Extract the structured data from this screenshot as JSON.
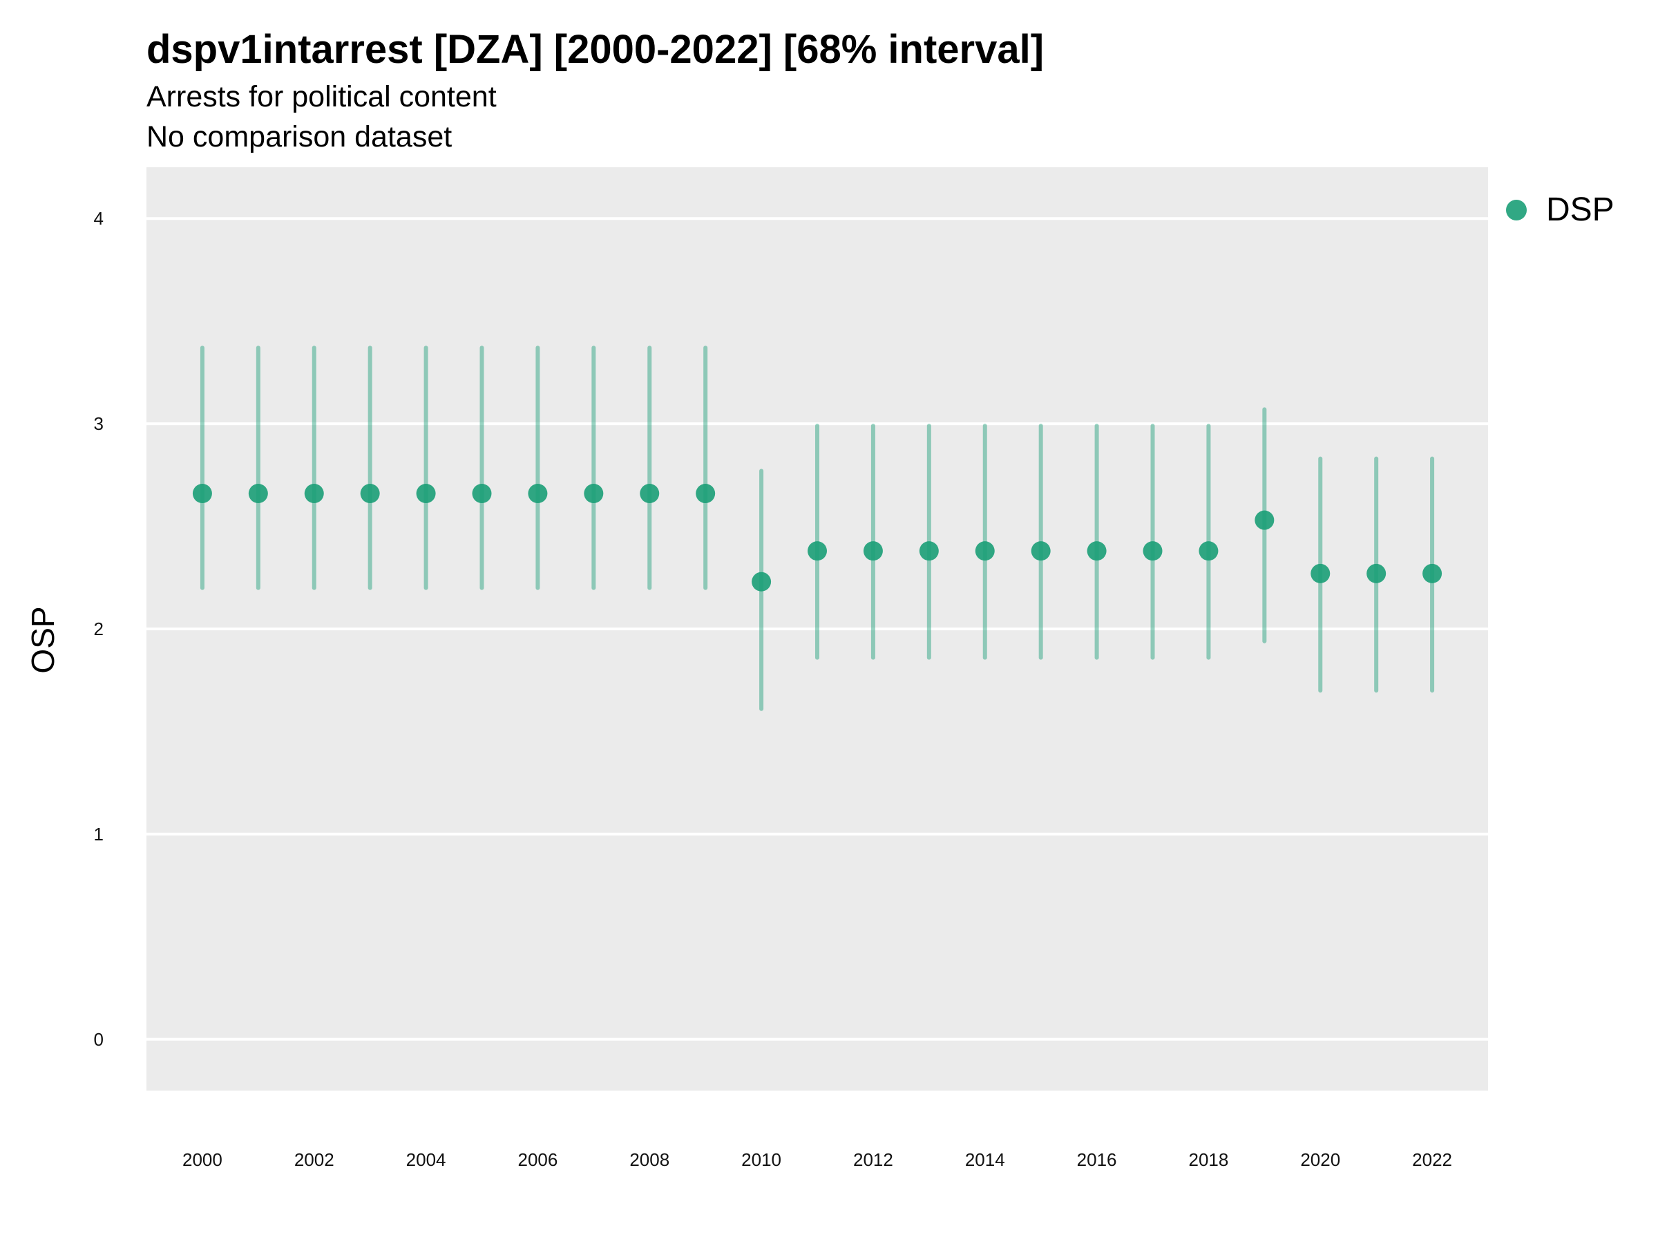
{
  "title": "dspv1intarrest [DZA] [2000-2022] [68% interval]",
  "subtitle": "Arrests for political content",
  "subtitle2": "No comparison dataset",
  "chart_data": {
    "type": "scatter",
    "title": "dspv1intarrest [DZA] [2000-2022] [68% interval]",
    "subtitle": [
      "Arrests for political content",
      "No comparison dataset"
    ],
    "xlabel": "",
    "ylabel": "OSP",
    "xlim": [
      1999,
      2023
    ],
    "ylim": [
      -0.25,
      4.25
    ],
    "x_ticks": [
      2000,
      2002,
      2004,
      2006,
      2008,
      2010,
      2012,
      2014,
      2016,
      2018,
      2020,
      2022
    ],
    "y_ticks": [
      0,
      1,
      2,
      3,
      4
    ],
    "grid": true,
    "legend": {
      "position": "right",
      "entries": [
        "DSP"
      ]
    },
    "series": [
      {
        "name": "DSP",
        "color": "#1b9e77",
        "x": [
          2000,
          2001,
          2002,
          2003,
          2004,
          2005,
          2006,
          2007,
          2008,
          2009,
          2010,
          2011,
          2012,
          2013,
          2014,
          2015,
          2016,
          2017,
          2018,
          2019,
          2020,
          2021,
          2022
        ],
        "y": [
          2.66,
          2.66,
          2.66,
          2.66,
          2.66,
          2.66,
          2.66,
          2.66,
          2.66,
          2.66,
          2.23,
          2.38,
          2.38,
          2.38,
          2.38,
          2.38,
          2.38,
          2.38,
          2.38,
          2.53,
          2.27,
          2.27,
          2.27
        ],
        "lower": [
          2.2,
          2.2,
          2.2,
          2.2,
          2.2,
          2.2,
          2.2,
          2.2,
          2.2,
          2.2,
          1.61,
          1.86,
          1.86,
          1.86,
          1.86,
          1.86,
          1.86,
          1.86,
          1.86,
          1.94,
          1.7,
          1.7,
          1.7
        ],
        "upper": [
          3.37,
          3.37,
          3.37,
          3.37,
          3.37,
          3.37,
          3.37,
          3.37,
          3.37,
          3.37,
          2.77,
          2.99,
          2.99,
          2.99,
          2.99,
          2.99,
          2.99,
          2.99,
          2.99,
          3.07,
          2.83,
          2.83,
          2.83
        ]
      }
    ]
  }
}
